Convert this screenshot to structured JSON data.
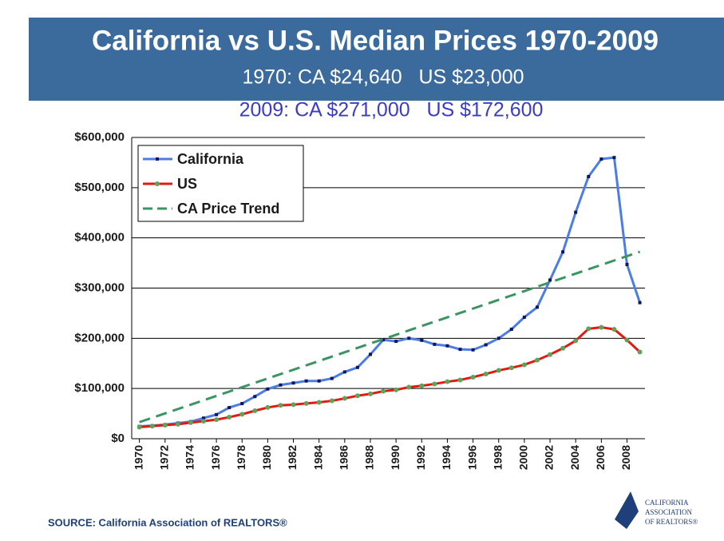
{
  "chart_data": {
    "type": "line",
    "title": "California vs U.S. Median Prices 1970-2009",
    "subtitle": [
      "1970: CA $24,640   US $23,000",
      "2009: CA $271,000   US $172,600"
    ],
    "source": "SOURCE: California Association of REALTORS®",
    "logo": [
      "CALIFORNIA",
      "ASSOCIATION",
      "OF REALTORS®"
    ],
    "x": [
      1970,
      1971,
      1972,
      1973,
      1974,
      1975,
      1976,
      1977,
      1978,
      1979,
      1980,
      1981,
      1982,
      1983,
      1984,
      1985,
      1986,
      1987,
      1988,
      1989,
      1990,
      1991,
      1992,
      1993,
      1994,
      1995,
      1996,
      1997,
      1998,
      1999,
      2000,
      2001,
      2002,
      2003,
      2004,
      2005,
      2006,
      2007,
      2008,
      2009
    ],
    "xlim": [
      1969.4,
      2009.4
    ],
    "xticks": [
      1970,
      1972,
      1974,
      1976,
      1978,
      1980,
      1982,
      1984,
      1986,
      1988,
      1990,
      1992,
      1994,
      1996,
      1998,
      2000,
      2002,
      2004,
      2006,
      2008
    ],
    "ylim": [
      0,
      600000
    ],
    "yticks": [
      {
        "value": 0,
        "label": "$0"
      },
      {
        "value": 100000,
        "label": "$100,000"
      },
      {
        "value": 200000,
        "label": "$200,000"
      },
      {
        "value": 300000,
        "label": "$300,000"
      },
      {
        "value": 400000,
        "label": "$400,000"
      },
      {
        "value": 500000,
        "label": "$500,000"
      },
      {
        "value": 600000,
        "label": "$600,000"
      }
    ],
    "grid": true,
    "legend": "upper left",
    "series": [
      {
        "name": "California",
        "color": "#4a7de6",
        "marker": "square",
        "marker_color": "#14145a",
        "dash": false,
        "values": [
          24640,
          26000,
          28000,
          31000,
          34000,
          41000,
          48000,
          62000,
          70000,
          84000,
          99000,
          107000,
          111000,
          115000,
          115000,
          120000,
          133000,
          142000,
          168000,
          197000,
          194000,
          200000,
          196000,
          188000,
          185000,
          178000,
          177000,
          187000,
          200000,
          218000,
          242000,
          262000,
          316000,
          372000,
          451000,
          522000,
          557000,
          560000,
          347000,
          271000
        ]
      },
      {
        "name": "US",
        "color": "#e31a12",
        "marker": "circle",
        "marker_color": "#5da35a",
        "dash": false,
        "values": [
          23000,
          25000,
          27000,
          28900,
          32000,
          35000,
          38000,
          42900,
          48700,
          55700,
          62200,
          66400,
          67800,
          70300,
          72400,
          75500,
          80300,
          85600,
          89300,
          94600,
          97300,
          102700,
          105500,
          109100,
          113500,
          117000,
          122600,
          129000,
          136000,
          141200,
          147300,
          156600,
          167600,
          180200,
          195200,
          219000,
          221900,
          217900,
          196600,
          172600
        ]
      },
      {
        "name": "CA Price Trend",
        "color": "#3a9463",
        "marker": "none",
        "dash": true,
        "values": [
          33000,
          41700,
          50400,
          59100,
          67800,
          76500,
          85200,
          93900,
          102600,
          111300,
          120000,
          128700,
          137400,
          146100,
          154800,
          163500,
          172200,
          180900,
          189600,
          198300,
          207000,
          215700,
          224400,
          233100,
          241800,
          250500,
          259200,
          267900,
          276600,
          285300,
          294000,
          302700,
          311400,
          320100,
          328800,
          337500,
          346200,
          354900,
          363600,
          372300
        ]
      }
    ]
  }
}
